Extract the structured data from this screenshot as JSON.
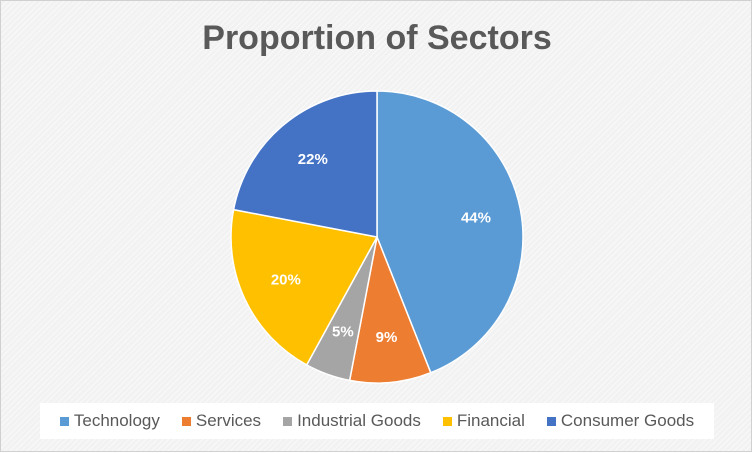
{
  "chart_data": {
    "type": "pie",
    "title": "Proportion of Sectors",
    "categories": [
      "Technology",
      "Services",
      "Industrial Goods",
      "Financial",
      "Consumer Goods"
    ],
    "values": [
      44,
      9,
      5,
      20,
      22
    ],
    "labels": [
      "44%",
      "9%",
      "5%",
      "20%",
      "22%"
    ],
    "colors": [
      "#5B9BD5",
      "#ED7D31",
      "#A5A5A5",
      "#FFC000",
      "#4472C4"
    ],
    "start_angle_deg": 0,
    "direction": "clockwise",
    "legend_position": "bottom"
  }
}
